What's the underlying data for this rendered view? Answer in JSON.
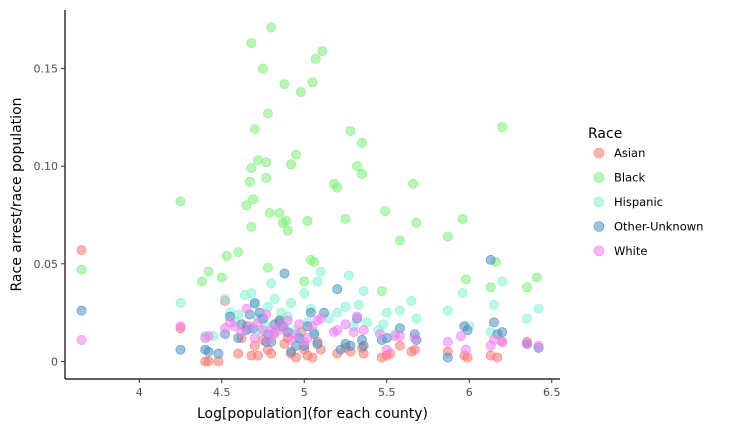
{
  "chart_data": {
    "type": "scatter",
    "title": "",
    "xlabel": "Log[population](for each county)",
    "ylabel": "Race arrest/race population",
    "xlim": [
      3.55,
      6.55
    ],
    "ylim": [
      -0.009,
      0.18
    ],
    "x_ticks": [
      4,
      4.5,
      5,
      5.5,
      6,
      6.5
    ],
    "x_tick_labels": [
      "4",
      "4.5",
      "5",
      "5.5",
      "6",
      "6.5"
    ],
    "y_ticks": [
      0,
      0.05,
      0.1,
      0.15
    ],
    "y_tick_labels": [
      "0",
      "0.05",
      "0.10",
      "0.15"
    ],
    "grid": false,
    "legend": {
      "title": "Race",
      "placement": "right"
    },
    "series": [
      {
        "name": "Asian",
        "color": "#f8766d",
        "points": [
          [
            3.65,
            0.057
          ],
          [
            4.25,
            0.017
          ],
          [
            4.4,
            0.0
          ],
          [
            4.42,
            0.0
          ],
          [
            4.48,
            0.0
          ],
          [
            4.52,
            0.031
          ],
          [
            4.6,
            0.004
          ],
          [
            4.62,
            0.012
          ],
          [
            4.65,
            0.018
          ],
          [
            4.68,
            0.003
          ],
          [
            4.7,
            0.008
          ],
          [
            4.72,
            0.003
          ],
          [
            4.75,
            0.011
          ],
          [
            4.78,
            0.006
          ],
          [
            4.8,
            0.004
          ],
          [
            4.82,
            0.015
          ],
          [
            4.85,
            0.02
          ],
          [
            4.88,
            0.009
          ],
          [
            4.9,
            0.012
          ],
          [
            4.92,
            0.004
          ],
          [
            4.95,
            0.002
          ],
          [
            4.98,
            0.015
          ],
          [
            5.0,
            0.006
          ],
          [
            5.02,
            0.003
          ],
          [
            5.05,
            0.002
          ],
          [
            5.08,
            0.01
          ],
          [
            5.1,
            0.006
          ],
          [
            5.2,
            0.004
          ],
          [
            5.25,
            0.007
          ],
          [
            5.28,
            0.005
          ],
          [
            5.35,
            0.007
          ],
          [
            5.36,
            0.004
          ],
          [
            5.47,
            0.002
          ],
          [
            5.5,
            0.003
          ],
          [
            5.52,
            0.004
          ],
          [
            5.58,
            0.008
          ],
          [
            5.65,
            0.005
          ],
          [
            5.67,
            0.006
          ],
          [
            5.87,
            0.005
          ],
          [
            5.97,
            0.003
          ],
          [
            5.99,
            0.002
          ],
          [
            6.13,
            0.003
          ],
          [
            6.17,
            0.002
          ],
          [
            6.2,
            0.01
          ],
          [
            6.35,
            0.01
          ]
        ]
      },
      {
        "name": "Black",
        "color": "#7cf079",
        "points": [
          [
            3.65,
            0.047
          ],
          [
            4.25,
            0.082
          ],
          [
            4.38,
            0.041
          ],
          [
            4.42,
            0.046
          ],
          [
            4.5,
            0.043
          ],
          [
            4.53,
            0.054
          ],
          [
            4.6,
            0.056
          ],
          [
            4.65,
            0.08
          ],
          [
            4.67,
            0.092
          ],
          [
            4.68,
            0.099
          ],
          [
            4.68,
            0.069
          ],
          [
            4.69,
            0.083
          ],
          [
            4.68,
            0.163
          ],
          [
            4.7,
            0.119
          ],
          [
            4.72,
            0.103
          ],
          [
            4.75,
            0.15
          ],
          [
            4.77,
            0.102
          ],
          [
            4.77,
            0.094
          ],
          [
            4.78,
            0.127
          ],
          [
            4.79,
            0.076
          ],
          [
            4.8,
            0.171
          ],
          [
            4.78,
            0.048
          ],
          [
            4.85,
            0.076
          ],
          [
            4.87,
            0.071
          ],
          [
            4.88,
            0.142
          ],
          [
            4.89,
            0.072
          ],
          [
            4.9,
            0.067
          ],
          [
            4.92,
            0.101
          ],
          [
            4.95,
            0.106
          ],
          [
            4.98,
            0.138
          ],
          [
            5.0,
            0.041
          ],
          [
            5.02,
            0.072
          ],
          [
            5.04,
            0.052
          ],
          [
            5.05,
            0.143
          ],
          [
            5.07,
            0.155
          ],
          [
            5.06,
            0.051
          ],
          [
            5.11,
            0.159
          ],
          [
            5.18,
            0.091
          ],
          [
            5.2,
            0.089
          ],
          [
            5.25,
            0.073
          ],
          [
            5.28,
            0.118
          ],
          [
            5.32,
            0.1
          ],
          [
            5.35,
            0.112
          ],
          [
            5.35,
            0.096
          ],
          [
            5.47,
            0.036
          ],
          [
            5.49,
            0.077
          ],
          [
            5.58,
            0.062
          ],
          [
            5.66,
            0.091
          ],
          [
            5.68,
            0.071
          ],
          [
            5.87,
            0.064
          ],
          [
            5.96,
            0.073
          ],
          [
            5.98,
            0.042
          ],
          [
            6.13,
            0.038
          ],
          [
            6.16,
            0.051
          ],
          [
            6.2,
            0.12
          ],
          [
            6.35,
            0.038
          ],
          [
            6.41,
            0.043
          ]
        ]
      },
      {
        "name": "Hispanic",
        "color": "#7ff3d3",
        "points": [
          [
            4.25,
            0.03
          ],
          [
            4.4,
            0.013
          ],
          [
            4.45,
            0.013
          ],
          [
            4.52,
            0.032
          ],
          [
            4.55,
            0.025
          ],
          [
            4.58,
            0.02
          ],
          [
            4.6,
            0.024
          ],
          [
            4.64,
            0.034
          ],
          [
            4.66,
            0.017
          ],
          [
            4.68,
            0.035
          ],
          [
            4.7,
            0.029
          ],
          [
            4.72,
            0.022
          ],
          [
            4.74,
            0.015
          ],
          [
            4.76,
            0.019
          ],
          [
            4.78,
            0.028
          ],
          [
            4.8,
            0.04
          ],
          [
            4.82,
            0.032
          ],
          [
            4.84,
            0.016
          ],
          [
            4.86,
            0.025
          ],
          [
            4.88,
            0.018
          ],
          [
            4.9,
            0.023
          ],
          [
            4.92,
            0.03
          ],
          [
            4.95,
            0.016
          ],
          [
            4.97,
            0.013
          ],
          [
            5.0,
            0.035
          ],
          [
            5.02,
            0.02
          ],
          [
            5.04,
            0.027
          ],
          [
            5.06,
            0.015
          ],
          [
            5.08,
            0.041
          ],
          [
            5.1,
            0.046
          ],
          [
            5.15,
            0.022
          ],
          [
            5.2,
            0.025
          ],
          [
            5.25,
            0.028
          ],
          [
            5.27,
            0.044
          ],
          [
            5.3,
            0.018
          ],
          [
            5.33,
            0.029
          ],
          [
            5.36,
            0.036
          ],
          [
            5.38,
            0.02
          ],
          [
            5.45,
            0.016
          ],
          [
            5.48,
            0.019
          ],
          [
            5.5,
            0.025
          ],
          [
            5.55,
            0.014
          ],
          [
            5.58,
            0.026
          ],
          [
            5.65,
            0.031
          ],
          [
            5.68,
            0.022
          ],
          [
            5.87,
            0.026
          ],
          [
            5.96,
            0.035
          ],
          [
            6.0,
            0.018
          ],
          [
            6.13,
            0.015
          ],
          [
            6.15,
            0.029
          ],
          [
            6.2,
            0.041
          ],
          [
            6.35,
            0.022
          ],
          [
            6.42,
            0.027
          ]
        ]
      },
      {
        "name": "Other-Unknown",
        "color": "#4a8fc2",
        "points": [
          [
            3.65,
            0.026
          ],
          [
            4.25,
            0.006
          ],
          [
            4.4,
            0.006
          ],
          [
            4.42,
            0.005
          ],
          [
            4.48,
            0.004
          ],
          [
            4.52,
            0.014
          ],
          [
            4.55,
            0.023
          ],
          [
            4.6,
            0.012
          ],
          [
            4.62,
            0.019
          ],
          [
            4.65,
            0.016
          ],
          [
            4.67,
            0.024
          ],
          [
            4.69,
            0.017
          ],
          [
            4.7,
            0.03
          ],
          [
            4.73,
            0.025
          ],
          [
            4.75,
            0.022
          ],
          [
            4.77,
            0.01
          ],
          [
            4.78,
            0.014
          ],
          [
            4.8,
            0.01
          ],
          [
            4.82,
            0.019
          ],
          [
            4.85,
            0.021
          ],
          [
            4.87,
            0.018
          ],
          [
            4.88,
            0.045
          ],
          [
            4.9,
            0.015
          ],
          [
            4.92,
            0.005
          ],
          [
            4.95,
            0.008
          ],
          [
            4.97,
            0.012
          ],
          [
            5.0,
            0.008
          ],
          [
            5.02,
            0.018
          ],
          [
            5.04,
            0.025
          ],
          [
            5.06,
            0.014
          ],
          [
            5.08,
            0.009
          ],
          [
            5.12,
            0.025
          ],
          [
            5.2,
            0.037
          ],
          [
            5.22,
            0.006
          ],
          [
            5.25,
            0.009
          ],
          [
            5.28,
            0.008
          ],
          [
            5.32,
            0.022
          ],
          [
            5.35,
            0.011
          ],
          [
            5.36,
            0.008
          ],
          [
            5.47,
            0.011
          ],
          [
            5.5,
            0.012
          ],
          [
            5.58,
            0.017
          ],
          [
            5.67,
            0.014
          ],
          [
            5.68,
            0.011
          ],
          [
            5.87,
            0.002
          ],
          [
            5.97,
            0.018
          ],
          [
            5.99,
            0.016
          ],
          [
            6.13,
            0.052
          ],
          [
            6.15,
            0.02
          ],
          [
            6.17,
            0.014
          ],
          [
            6.2,
            0.015
          ],
          [
            6.35,
            0.009
          ],
          [
            6.42,
            0.007
          ]
        ]
      },
      {
        "name": "White",
        "color": "#f37ef0",
        "points": [
          [
            3.65,
            0.011
          ],
          [
            4.25,
            0.018
          ],
          [
            4.4,
            0.012
          ],
          [
            4.42,
            0.013
          ],
          [
            4.52,
            0.017
          ],
          [
            4.55,
            0.02
          ],
          [
            4.58,
            0.018
          ],
          [
            4.62,
            0.015
          ],
          [
            4.65,
            0.027
          ],
          [
            4.67,
            0.018
          ],
          [
            4.7,
            0.012
          ],
          [
            4.72,
            0.02
          ],
          [
            4.75,
            0.016
          ],
          [
            4.77,
            0.024
          ],
          [
            4.78,
            0.011
          ],
          [
            4.8,
            0.016
          ],
          [
            4.82,
            0.014
          ],
          [
            4.85,
            0.018
          ],
          [
            4.88,
            0.016
          ],
          [
            4.9,
            0.021
          ],
          [
            4.92,
            0.011
          ],
          [
            4.95,
            0.014
          ],
          [
            4.97,
            0.019
          ],
          [
            5.0,
            0.01
          ],
          [
            5.02,
            0.012
          ],
          [
            5.05,
            0.018
          ],
          [
            5.08,
            0.021
          ],
          [
            5.1,
            0.022
          ],
          [
            5.18,
            0.015
          ],
          [
            5.2,
            0.016
          ],
          [
            5.25,
            0.019
          ],
          [
            5.3,
            0.015
          ],
          [
            5.32,
            0.023
          ],
          [
            5.36,
            0.016
          ],
          [
            5.46,
            0.014
          ],
          [
            5.5,
            0.006
          ],
          [
            5.55,
            0.013
          ],
          [
            5.58,
            0.013
          ],
          [
            5.67,
            0.012
          ],
          [
            5.87,
            0.01
          ],
          [
            5.95,
            0.013
          ],
          [
            5.98,
            0.006
          ],
          [
            6.13,
            0.008
          ],
          [
            6.15,
            0.011
          ],
          [
            6.2,
            0.01
          ],
          [
            6.35,
            0.009
          ],
          [
            6.42,
            0.008
          ]
        ]
      }
    ]
  }
}
